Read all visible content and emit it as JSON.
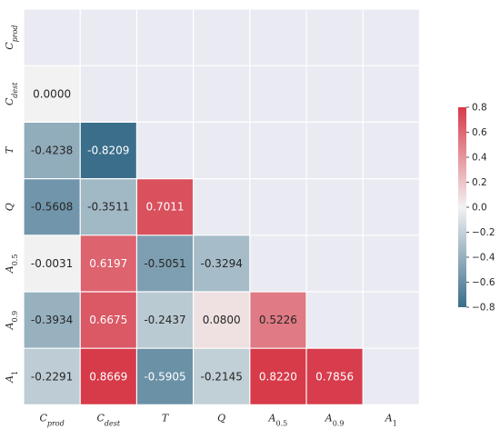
{
  "chart_data": {
    "type": "heatmap",
    "mask": "upper-triangle-including-diagonal",
    "labels": [
      {
        "base": "C",
        "sub": "prod",
        "subItalic": true
      },
      {
        "base": "C",
        "sub": "dest",
        "subItalic": true
      },
      {
        "base": "T",
        "sub": "",
        "subItalic": false
      },
      {
        "base": "Q",
        "sub": "",
        "subItalic": false
      },
      {
        "base": "A",
        "sub": "0.5",
        "subItalic": false
      },
      {
        "base": "A",
        "sub": "0.9",
        "subItalic": false
      },
      {
        "base": "A",
        "sub": "1",
        "subItalic": false
      }
    ],
    "rows": [
      [
        null,
        null,
        null,
        null,
        null,
        null,
        null
      ],
      [
        0.0,
        null,
        null,
        null,
        null,
        null,
        null
      ],
      [
        -0.4238,
        -0.8209,
        null,
        null,
        null,
        null,
        null
      ],
      [
        -0.5608,
        -0.3511,
        0.7011,
        null,
        null,
        null,
        null
      ],
      [
        -0.0031,
        0.6197,
        -0.5051,
        -0.3294,
        null,
        null,
        null
      ],
      [
        -0.3934,
        0.6675,
        -0.2437,
        0.08,
        0.5226,
        null,
        null
      ],
      [
        -0.2291,
        0.8669,
        -0.5905,
        -0.2145,
        0.822,
        0.7856,
        null
      ]
    ],
    "cell_labels": [
      [],
      [
        "0.0000"
      ],
      [
        "-0.4238",
        "-0.8209"
      ],
      [
        "-0.5608",
        "-0.3511",
        "0.7011"
      ],
      [
        "-0.0031",
        "0.6197",
        "-0.5051",
        "-0.3294"
      ],
      [
        "-0.3934",
        "0.6675",
        "-0.2437",
        "0.0800",
        "0.5226"
      ],
      [
        "-0.2291",
        "0.8669",
        "-0.5905",
        "-0.2145",
        "0.8220",
        "0.7856"
      ]
    ],
    "vmin": -0.8,
    "vmax": 0.8,
    "colormap": {
      "negative": "#3a6e8b",
      "center": "#f2f2f2",
      "positive": "#d73a49"
    },
    "background": "#eaeaf2",
    "colorbar": {
      "placement": "right",
      "ticks": [
        "0.8",
        "0.6",
        "0.4",
        "0.2",
        "0.0",
        "−0.2",
        "−0.4",
        "−0.6",
        "−0.8"
      ]
    },
    "title": "",
    "xlabel": "",
    "ylabel": ""
  }
}
